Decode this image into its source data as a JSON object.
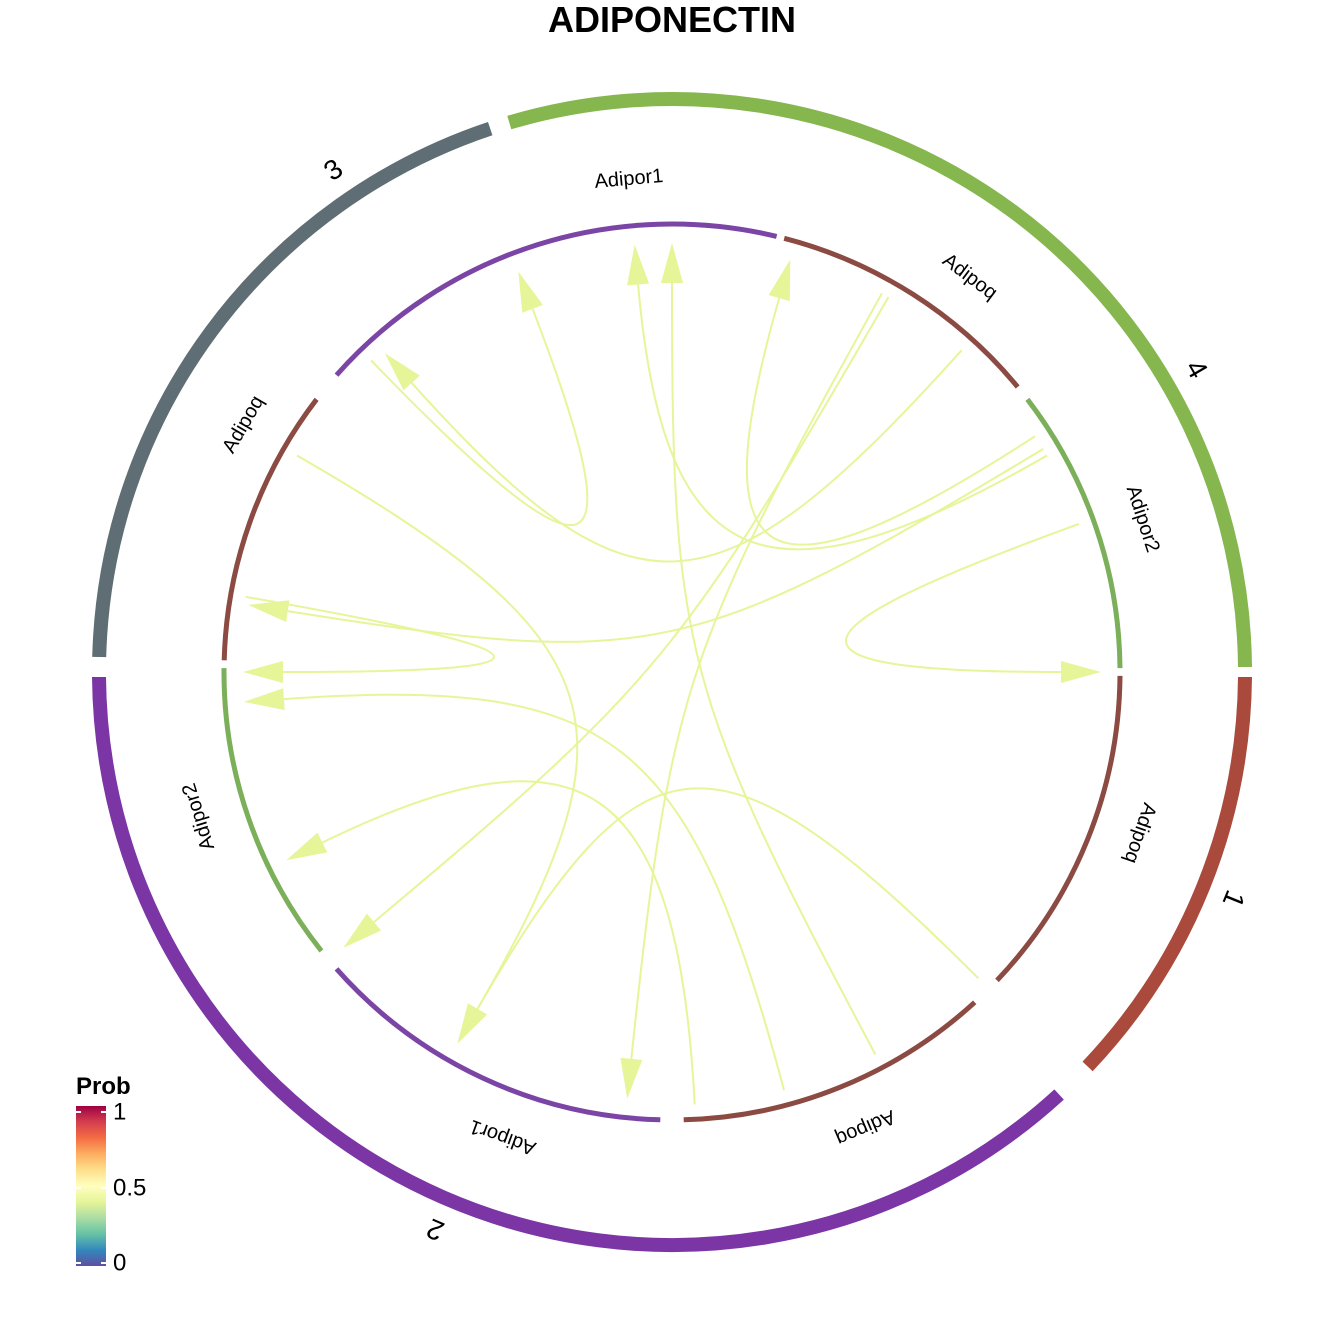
{
  "title": "ADIPONECTIN",
  "legend": {
    "title": "Prob",
    "ticks": [
      "1",
      "0.5",
      "0"
    ],
    "colors": [
      "#5E4FA2",
      "#3288BD",
      "#66C2A5",
      "#ABDDA4",
      "#E6F598",
      "#FFFFBF",
      "#FEE08B",
      "#FDAE61",
      "#F46D43",
      "#D53E4F",
      "#9E0142"
    ]
  },
  "edge_color": "#E6F598",
  "groups": [
    {
      "label": "1",
      "color": "#A94A3C"
    },
    {
      "label": "2",
      "color": "#7B35A5"
    },
    {
      "label": "3",
      "color": "#5E6E74"
    },
    {
      "label": "4",
      "color": "#86B64E"
    }
  ],
  "sectors": [
    {
      "label": "Adipoq",
      "color": "#8B4A42"
    },
    {
      "label": "Adipoq",
      "color": "#8B4A42"
    },
    {
      "label": "Adipor1",
      "color": "#7B45A5"
    },
    {
      "label": "Adipor2",
      "color": "#7BAF5A"
    },
    {
      "label": "Adipoq",
      "color": "#8B4A42"
    },
    {
      "label": "Adipor1",
      "color": "#7B45A5"
    },
    {
      "label": "Adipoq",
      "color": "#8B4A42"
    },
    {
      "label": "Adipor2",
      "color": "#7BAF5A"
    }
  ],
  "chart_data": {
    "type": "chord",
    "title": "ADIPONECTIN",
    "value_name": "Prob",
    "color_scale": {
      "min": 0,
      "max": 1,
      "ticks": [
        0,
        0.5,
        1
      ]
    },
    "nodes": [
      {
        "gene": "Adipoq",
        "group": "1"
      },
      {
        "gene": "Adipoq",
        "group": "2"
      },
      {
        "gene": "Adipor1",
        "group": "2"
      },
      {
        "gene": "Adipor2",
        "group": "2"
      },
      {
        "gene": "Adipoq",
        "group": "3"
      },
      {
        "gene": "Adipor1",
        "group": "3"
      },
      {
        "gene": "Adipoq",
        "group": "4"
      },
      {
        "gene": "Adipor2",
        "group": "4"
      }
    ],
    "links": [
      {
        "source": "Adipoq (1)",
        "target": "Adipor2 (4)",
        "prob": 0.5
      },
      {
        "source": "Adipoq (1)",
        "target": "Adipor1 (3)",
        "prob": 0.5
      },
      {
        "source": "Adipoq (1)",
        "target": "Adipor2 (2)",
        "prob": 0.5
      },
      {
        "source": "Adipoq (1)",
        "target": "Adipor1 (2)",
        "prob": 0.5
      },
      {
        "source": "Adipoq (2)",
        "target": "Adipor1 (2)",
        "prob": 0.5
      },
      {
        "source": "Adipoq (2)",
        "target": "Adipor1 (3)",
        "prob": 0.5
      },
      {
        "source": "Adipoq (2)",
        "target": "Adipor2 (2)",
        "prob": 0.5
      },
      {
        "source": "Adipoq (2)",
        "target": "Adipor2 (4)",
        "prob": 0.5
      },
      {
        "source": "Adipoq (3)",
        "target": "Adipor1 (2)",
        "prob": 0.5
      },
      {
        "source": "Adipoq (3)",
        "target": "Adipor2 (2)",
        "prob": 0.5
      },
      {
        "source": "Adipoq (3)",
        "target": "Adipor1 (3)",
        "prob": 0.5
      },
      {
        "source": "Adipoq (4)",
        "target": "Adipor1 (3)",
        "prob": 0.5
      },
      {
        "source": "Adipoq (4)",
        "target": "Adipor2 (2)",
        "prob": 0.5
      },
      {
        "source": "Adipoq (4)",
        "target": "Adipor1 (2)",
        "prob": 0.5
      }
    ]
  }
}
